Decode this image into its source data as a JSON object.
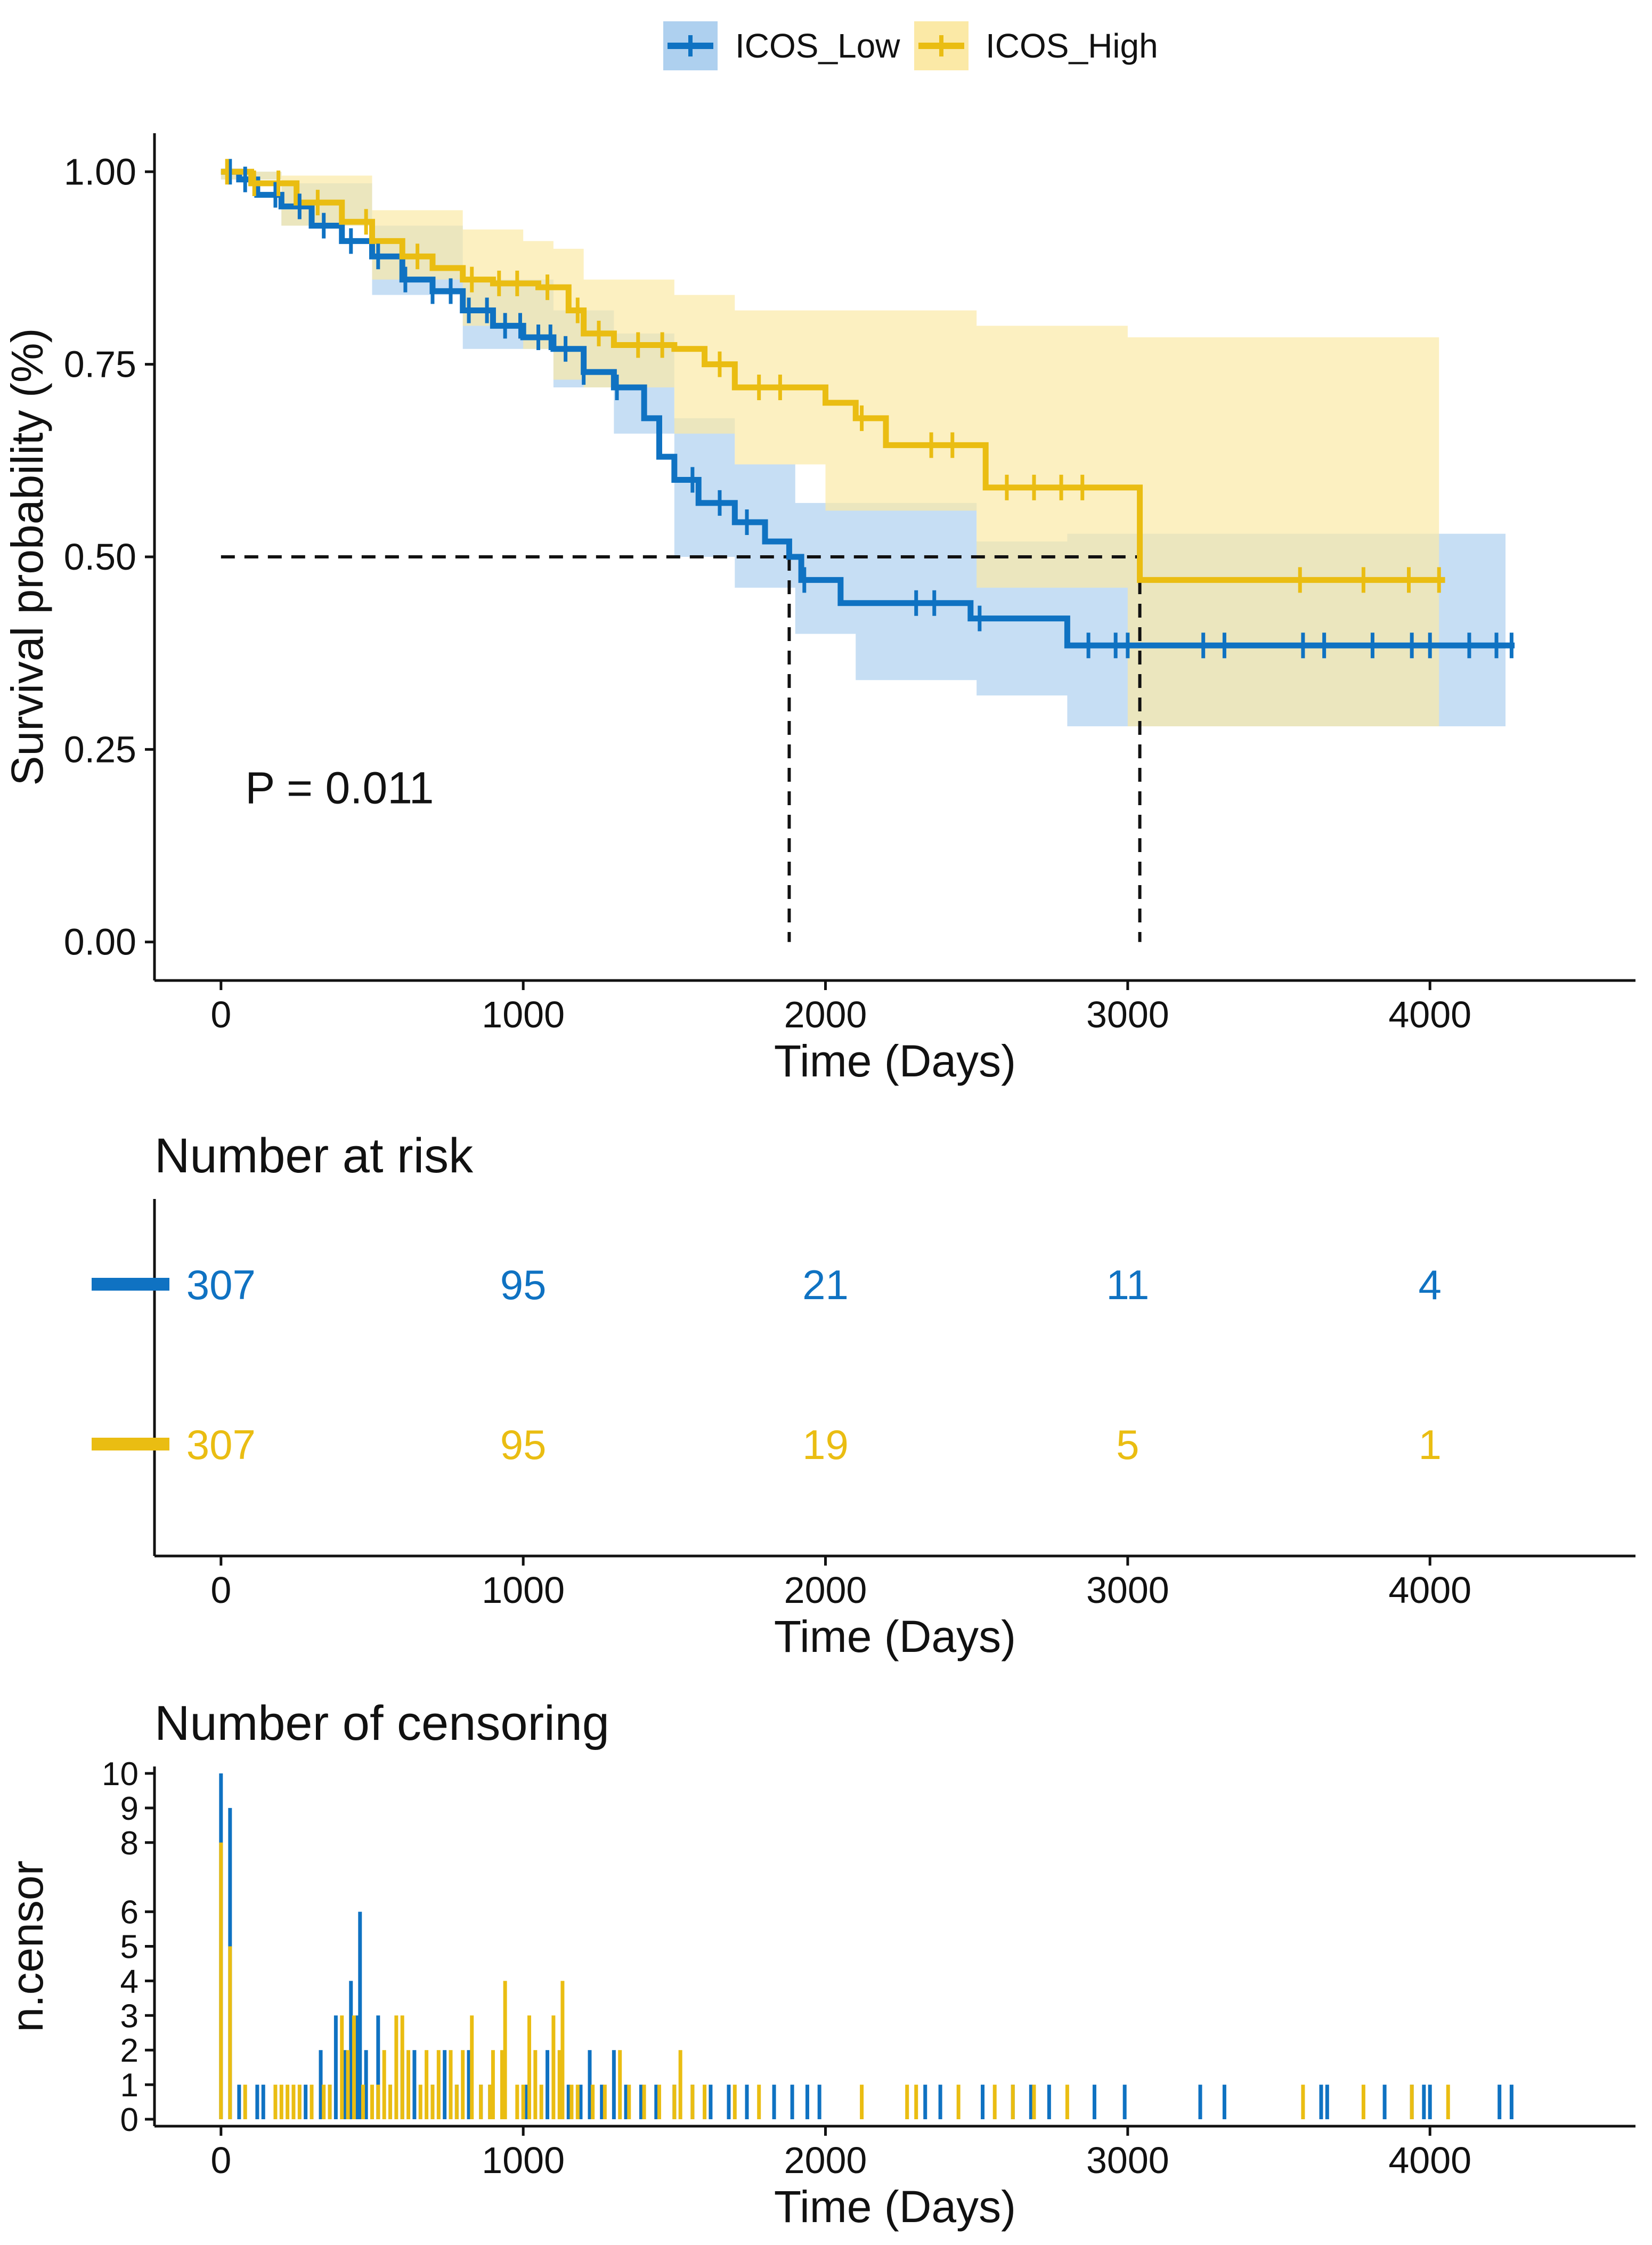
{
  "legend": {
    "items": [
      {
        "name": "ICOS_Low",
        "color": "#0f72c2"
      },
      {
        "name": "ICOS_High",
        "color": "#eabd12"
      }
    ]
  },
  "chart_data": [
    {
      "type": "line",
      "subtype": "kaplan-meier step",
      "title": "",
      "xlabel": "Time (Days)",
      "ylabel": "Survival probability (%)",
      "xlim": [
        -220,
        4680
      ],
      "ylim": [
        -0.05,
        1.05
      ],
      "xticks": [
        0,
        1000,
        2000,
        3000,
        4000
      ],
      "xtick_labels": [
        "0",
        "1000",
        "2000",
        "3000",
        "4000"
      ],
      "yticks": [
        0,
        0.25,
        0.5,
        0.75,
        1.0
      ],
      "ytick_labels": [
        "0.00",
        "0.25",
        "0.50",
        "0.75",
        "1.00"
      ],
      "annotation": "P = 0.011",
      "median_line": {
        "y": 0.5,
        "x_low": 1880,
        "x_high": 3040
      },
      "series": [
        {
          "name": "ICOS_Low",
          "color": "#0f72c2",
          "band_color": "#aed0ef",
          "steps": [
            [
              0,
              1.0
            ],
            [
              60,
              0.99
            ],
            [
              120,
              0.97
            ],
            [
              200,
              0.955
            ],
            [
              300,
              0.93
            ],
            [
              400,
              0.91
            ],
            [
              500,
              0.89
            ],
            [
              600,
              0.86
            ],
            [
              700,
              0.845
            ],
            [
              800,
              0.82
            ],
            [
              900,
              0.8
            ],
            [
              1000,
              0.785
            ],
            [
              1100,
              0.77
            ],
            [
              1200,
              0.74
            ],
            [
              1300,
              0.72
            ],
            [
              1400,
              0.68
            ],
            [
              1450,
              0.63
            ],
            [
              1500,
              0.6
            ],
            [
              1580,
              0.57
            ],
            [
              1700,
              0.545
            ],
            [
              1800,
              0.52
            ],
            [
              1880,
              0.5
            ],
            [
              1920,
              0.47
            ],
            [
              2050,
              0.44
            ],
            [
              2400,
              0.44
            ],
            [
              2480,
              0.42
            ],
            [
              2800,
              0.385
            ],
            [
              4280,
              0.385
            ]
          ],
          "upper": [
            [
              0,
              1.0
            ],
            [
              200,
              0.985
            ],
            [
              500,
              0.93
            ],
            [
              800,
              0.86
            ],
            [
              1100,
              0.82
            ],
            [
              1300,
              0.79
            ],
            [
              1500,
              0.68
            ],
            [
              1700,
              0.62
            ],
            [
              1900,
              0.57
            ],
            [
              2100,
              0.57
            ],
            [
              2500,
              0.52
            ],
            [
              2800,
              0.53
            ],
            [
              4250,
              0.53
            ]
          ],
          "lower": [
            [
              0,
              0.99
            ],
            [
              200,
              0.93
            ],
            [
              500,
              0.84
            ],
            [
              800,
              0.77
            ],
            [
              1100,
              0.72
            ],
            [
              1300,
              0.66
            ],
            [
              1500,
              0.5
            ],
            [
              1700,
              0.46
            ],
            [
              1900,
              0.4
            ],
            [
              2100,
              0.34
            ],
            [
              2500,
              0.32
            ],
            [
              2800,
              0.28
            ],
            [
              4250,
              0.28
            ]
          ],
          "censor_times": [
            30,
            80,
            180,
            260,
            340,
            430,
            520,
            610,
            700,
            760,
            820,
            880,
            940,
            990,
            1050,
            1090,
            1140,
            1200,
            1310,
            1560,
            1650,
            1740,
            1930,
            2300,
            2360,
            2510,
            2870,
            2960,
            3000,
            3250,
            3320,
            3580,
            3650,
            3810,
            3940,
            4000,
            4130,
            4220,
            4270
          ]
        },
        {
          "name": "ICOS_High",
          "color": "#eabd12",
          "band_color": "#fbe9a6",
          "steps": [
            [
              0,
              1.0
            ],
            [
              100,
              0.985
            ],
            [
              250,
              0.96
            ],
            [
              400,
              0.935
            ],
            [
              500,
              0.91
            ],
            [
              600,
              0.89
            ],
            [
              700,
              0.875
            ],
            [
              800,
              0.86
            ],
            [
              900,
              0.855
            ],
            [
              1050,
              0.85
            ],
            [
              1150,
              0.82
            ],
            [
              1200,
              0.79
            ],
            [
              1300,
              0.775
            ],
            [
              1500,
              0.77
            ],
            [
              1600,
              0.75
            ],
            [
              1700,
              0.72
            ],
            [
              2000,
              0.7
            ],
            [
              2100,
              0.68
            ],
            [
              2200,
              0.645
            ],
            [
              2530,
              0.59
            ],
            [
              3040,
              0.47
            ],
            [
              4050,
              0.47
            ]
          ],
          "upper": [
            [
              0,
              1.0
            ],
            [
              200,
              0.995
            ],
            [
              500,
              0.95
            ],
            [
              800,
              0.925
            ],
            [
              1000,
              0.91
            ],
            [
              1100,
              0.9
            ],
            [
              1200,
              0.86
            ],
            [
              1500,
              0.84
            ],
            [
              1700,
              0.82
            ],
            [
              2000,
              0.82
            ],
            [
              2500,
              0.8
            ],
            [
              3000,
              0.785
            ],
            [
              4030,
              0.785
            ]
          ],
          "lower": [
            [
              0,
              0.99
            ],
            [
              200,
              0.93
            ],
            [
              500,
              0.86
            ],
            [
              800,
              0.8
            ],
            [
              1000,
              0.77
            ],
            [
              1100,
              0.73
            ],
            [
              1200,
              0.72
            ],
            [
              1500,
              0.66
            ],
            [
              1700,
              0.62
            ],
            [
              2000,
              0.56
            ],
            [
              2500,
              0.46
            ],
            [
              3000,
              0.28
            ],
            [
              4030,
              0.28
            ]
          ],
          "censor_times": [
            20,
            110,
            190,
            320,
            480,
            650,
            830,
            920,
            980,
            1080,
            1180,
            1250,
            1380,
            1460,
            1650,
            1780,
            1850,
            2120,
            2350,
            2420,
            2600,
            2690,
            2780,
            2850,
            3570,
            3780,
            3930,
            4030
          ]
        }
      ]
    },
    {
      "type": "table",
      "title": "Number at risk",
      "xlabel": "Time (Days)",
      "xlim": [
        -220,
        4680
      ],
      "xticks": [
        0,
        1000,
        2000,
        3000,
        4000
      ],
      "xtick_labels": [
        "0",
        "1000",
        "2000",
        "3000",
        "4000"
      ],
      "rows": [
        {
          "name": "ICOS_Low",
          "color": "#0f72c2",
          "values": [
            "307",
            "95",
            "21",
            "11",
            "4"
          ]
        },
        {
          "name": "ICOS_High",
          "color": "#eabd12",
          "values": [
            "307",
            "95",
            "19",
            "5",
            "1"
          ]
        }
      ]
    },
    {
      "type": "bar",
      "subtype": "censoring spikes",
      "title": "Number of censoring",
      "xlabel": "Time (Days)",
      "ylabel": "n.censor",
      "xlim": [
        -220,
        4680
      ],
      "ylim": [
        -0.2,
        10.2
      ],
      "xticks": [
        0,
        1000,
        2000,
        3000,
        4000
      ],
      "xtick_labels": [
        "0",
        "1000",
        "2000",
        "3000",
        "4000"
      ],
      "yticks": [
        0,
        1,
        2,
        3,
        4,
        5,
        6,
        8,
        9,
        10
      ],
      "ytick_labels": [
        "0",
        "1",
        "2",
        "3",
        "4",
        "5",
        "6",
        "8",
        "9",
        "10"
      ],
      "series": [
        {
          "name": "ICOS_Low",
          "color": "#0f72c2",
          "points": [
            [
              0,
              10
            ],
            [
              30,
              9
            ],
            [
              60,
              1
            ],
            [
              120,
              1
            ],
            [
              140,
              1
            ],
            [
              280,
              1
            ],
            [
              330,
              2
            ],
            [
              360,
              1
            ],
            [
              380,
              3
            ],
            [
              410,
              2
            ],
            [
              430,
              4
            ],
            [
              450,
              3
            ],
            [
              460,
              6
            ],
            [
              480,
              2
            ],
            [
              520,
              3
            ],
            [
              560,
              1
            ],
            [
              600,
              2
            ],
            [
              640,
              2
            ],
            [
              700,
              1
            ],
            [
              740,
              2
            ],
            [
              780,
              1
            ],
            [
              820,
              2
            ],
            [
              860,
              1
            ],
            [
              890,
              1
            ],
            [
              1010,
              1
            ],
            [
              1080,
              2
            ],
            [
              1150,
              1
            ],
            [
              1190,
              1
            ],
            [
              1220,
              2
            ],
            [
              1260,
              1
            ],
            [
              1300,
              2
            ],
            [
              1340,
              1
            ],
            [
              1390,
              1
            ],
            [
              1440,
              1
            ],
            [
              1500,
              1
            ],
            [
              1560,
              1
            ],
            [
              1620,
              1
            ],
            [
              1680,
              1
            ],
            [
              1740,
              1
            ],
            [
              1830,
              1
            ],
            [
              1890,
              1
            ],
            [
              1940,
              1
            ],
            [
              1980,
              1
            ],
            [
              2330,
              1
            ],
            [
              2380,
              1
            ],
            [
              2520,
              1
            ],
            [
              2620,
              1
            ],
            [
              2680,
              1
            ],
            [
              2740,
              1
            ],
            [
              2890,
              1
            ],
            [
              2990,
              1
            ],
            [
              3240,
              1
            ],
            [
              3320,
              1
            ],
            [
              3640,
              1
            ],
            [
              3660,
              1
            ],
            [
              3850,
              1
            ],
            [
              3940,
              1
            ],
            [
              3980,
              1
            ],
            [
              4000,
              1
            ],
            [
              4230,
              1
            ],
            [
              4270,
              1
            ]
          ]
        },
        {
          "name": "ICOS_High",
          "color": "#eabd12",
          "points": [
            [
              0,
              8
            ],
            [
              30,
              5
            ],
            [
              80,
              1
            ],
            [
              180,
              1
            ],
            [
              200,
              1
            ],
            [
              220,
              1
            ],
            [
              240,
              1
            ],
            [
              260,
              1
            ],
            [
              300,
              1
            ],
            [
              340,
              1
            ],
            [
              360,
              1
            ],
            [
              400,
              3
            ],
            [
              420,
              2
            ],
            [
              440,
              3
            ],
            [
              470,
              1
            ],
            [
              500,
              1
            ],
            [
              520,
              1
            ],
            [
              540,
              2
            ],
            [
              560,
              1
            ],
            [
              580,
              3
            ],
            [
              600,
              3
            ],
            [
              620,
              2
            ],
            [
              660,
              1
            ],
            [
              680,
              2
            ],
            [
              700,
              1
            ],
            [
              720,
              2
            ],
            [
              760,
              2
            ],
            [
              780,
              1
            ],
            [
              800,
              2
            ],
            [
              830,
              3
            ],
            [
              860,
              1
            ],
            [
              890,
              1
            ],
            [
              900,
              2
            ],
            [
              930,
              2
            ],
            [
              940,
              4
            ],
            [
              980,
              1
            ],
            [
              1000,
              1
            ],
            [
              1020,
              3
            ],
            [
              1040,
              2
            ],
            [
              1060,
              1
            ],
            [
              1100,
              3
            ],
            [
              1120,
              2
            ],
            [
              1130,
              4
            ],
            [
              1160,
              1
            ],
            [
              1180,
              1
            ],
            [
              1230,
              1
            ],
            [
              1270,
              1
            ],
            [
              1320,
              2
            ],
            [
              1350,
              1
            ],
            [
              1400,
              1
            ],
            [
              1450,
              1
            ],
            [
              1500,
              1
            ],
            [
              1520,
              2
            ],
            [
              1560,
              1
            ],
            [
              1600,
              1
            ],
            [
              1700,
              1
            ],
            [
              1780,
              1
            ],
            [
              2120,
              1
            ],
            [
              2270,
              1
            ],
            [
              2300,
              1
            ],
            [
              2440,
              1
            ],
            [
              2560,
              1
            ],
            [
              2620,
              1
            ],
            [
              2690,
              1
            ],
            [
              2800,
              1
            ],
            [
              3580,
              1
            ],
            [
              3780,
              1
            ],
            [
              3940,
              1
            ],
            [
              4060,
              1
            ]
          ]
        }
      ]
    }
  ]
}
